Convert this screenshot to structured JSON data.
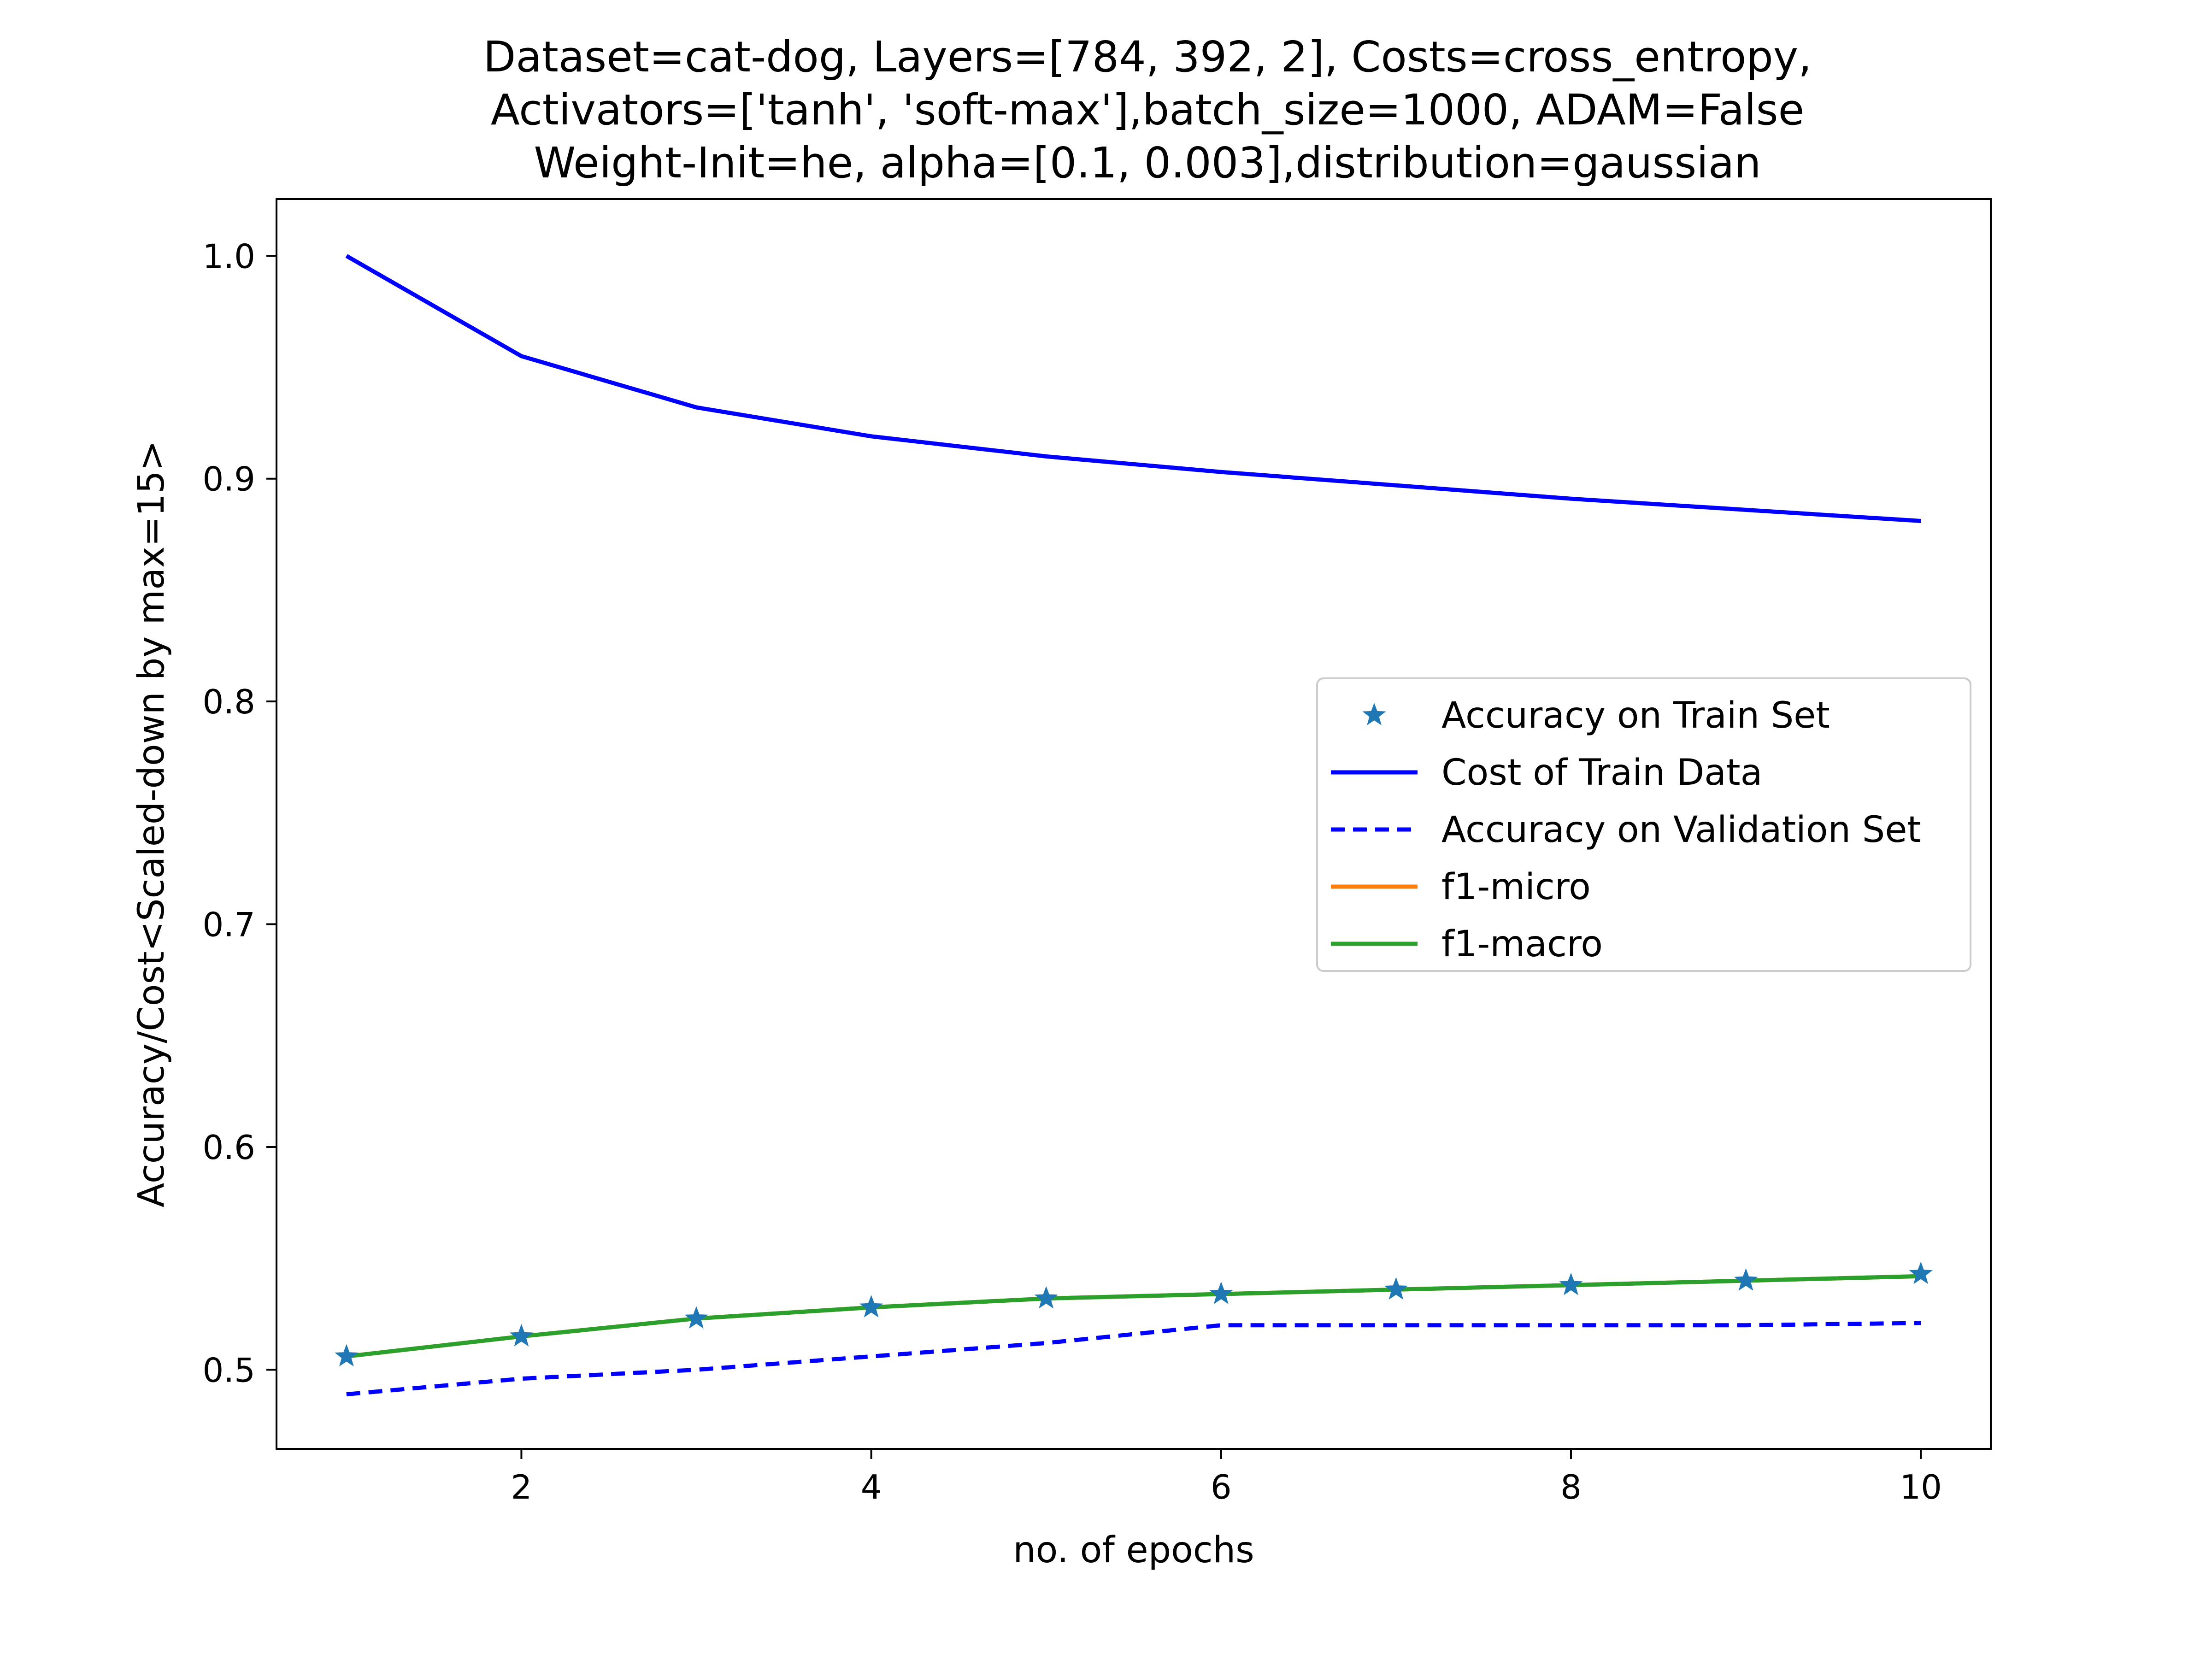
{
  "chart_data": {
    "type": "line",
    "title_lines": [
      "Dataset=cat-dog, Layers=[784, 392, 2], Costs=cross_entropy,",
      "Activators=['tanh', 'soft-max'],batch_size=1000, ADAM=False",
      "Weight-Init=he, alpha=[0.1, 0.003],distribution=gaussian"
    ],
    "xlabel": "no. of epochs",
    "ylabel": "Accuracy/Cost<Scaled-down by max=15>",
    "xlim": [
      0.6,
      10.4
    ],
    "ylim": [
      0.4645,
      1.0255
    ],
    "x_ticks": [
      2,
      4,
      6,
      8,
      10
    ],
    "x_tick_labels": [
      "2",
      "4",
      "6",
      "8",
      "10"
    ],
    "y_ticks": [
      0.5,
      0.6,
      0.7,
      0.8,
      0.9,
      1.0
    ],
    "y_tick_labels": [
      "0.5",
      "0.6",
      "0.7",
      "0.8",
      "0.9",
      "1.0"
    ],
    "grid": false,
    "legend_position": "center-right",
    "x": [
      1,
      2,
      3,
      4,
      5,
      6,
      7,
      8,
      9,
      10
    ],
    "series": [
      {
        "name": "Accuracy on Train Set",
        "style": "star",
        "color": "#1f77b4",
        "values": [
          0.506,
          0.515,
          0.523,
          0.528,
          0.532,
          0.534,
          0.536,
          0.538,
          0.54,
          0.543
        ]
      },
      {
        "name": "Cost of Train Data",
        "style": "solid",
        "color": "#0000ff",
        "values": [
          1.0,
          0.955,
          0.932,
          0.919,
          0.91,
          0.903,
          0.897,
          0.891,
          0.886,
          0.881
        ]
      },
      {
        "name": "Accuracy on Validation Set",
        "style": "dashed",
        "color": "#0000ff",
        "values": [
          0.489,
          0.496,
          0.5,
          0.506,
          0.512,
          0.52,
          0.52,
          0.52,
          0.52,
          0.521
        ]
      },
      {
        "name": "f1-micro",
        "style": "solid",
        "color": "#ff7f0e",
        "values": [
          0.506,
          0.515,
          0.523,
          0.528,
          0.532,
          0.534,
          0.536,
          0.538,
          0.54,
          0.542
        ]
      },
      {
        "name": "f1-macro",
        "style": "solid",
        "color": "#2ca02c",
        "values": [
          0.506,
          0.515,
          0.523,
          0.528,
          0.532,
          0.534,
          0.536,
          0.538,
          0.54,
          0.542
        ]
      }
    ]
  }
}
